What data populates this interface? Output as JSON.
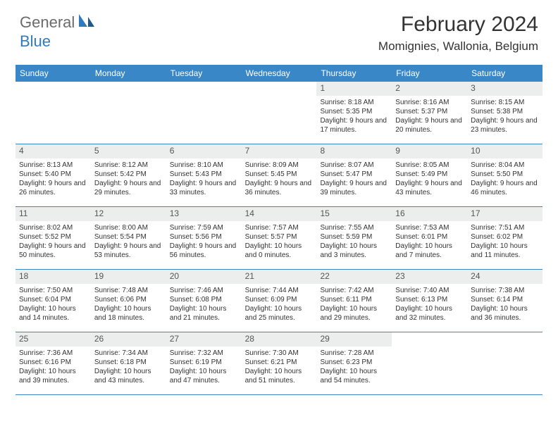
{
  "logo": {
    "text1": "General",
    "text2": "Blue"
  },
  "title": "February 2024",
  "location": "Momignies, Wallonia, Belgium",
  "colors": {
    "header_bg": "#3a87c7",
    "daynum_bg": "#eceded",
    "row_border": "#3a87c7",
    "logo_gray": "#6b6b6b",
    "logo_blue": "#2f7bbf"
  },
  "day_headers": [
    "Sunday",
    "Monday",
    "Tuesday",
    "Wednesday",
    "Thursday",
    "Friday",
    "Saturday"
  ],
  "weeks": [
    [
      null,
      null,
      null,
      null,
      {
        "n": "1",
        "sr": "8:18 AM",
        "ss": "5:35 PM",
        "dl": "9 hours and 17 minutes."
      },
      {
        "n": "2",
        "sr": "8:16 AM",
        "ss": "5:37 PM",
        "dl": "9 hours and 20 minutes."
      },
      {
        "n": "3",
        "sr": "8:15 AM",
        "ss": "5:38 PM",
        "dl": "9 hours and 23 minutes."
      }
    ],
    [
      {
        "n": "4",
        "sr": "8:13 AM",
        "ss": "5:40 PM",
        "dl": "9 hours and 26 minutes."
      },
      {
        "n": "5",
        "sr": "8:12 AM",
        "ss": "5:42 PM",
        "dl": "9 hours and 29 minutes."
      },
      {
        "n": "6",
        "sr": "8:10 AM",
        "ss": "5:43 PM",
        "dl": "9 hours and 33 minutes."
      },
      {
        "n": "7",
        "sr": "8:09 AM",
        "ss": "5:45 PM",
        "dl": "9 hours and 36 minutes."
      },
      {
        "n": "8",
        "sr": "8:07 AM",
        "ss": "5:47 PM",
        "dl": "9 hours and 39 minutes."
      },
      {
        "n": "9",
        "sr": "8:05 AM",
        "ss": "5:49 PM",
        "dl": "9 hours and 43 minutes."
      },
      {
        "n": "10",
        "sr": "8:04 AM",
        "ss": "5:50 PM",
        "dl": "9 hours and 46 minutes."
      }
    ],
    [
      {
        "n": "11",
        "sr": "8:02 AM",
        "ss": "5:52 PM",
        "dl": "9 hours and 50 minutes."
      },
      {
        "n": "12",
        "sr": "8:00 AM",
        "ss": "5:54 PM",
        "dl": "9 hours and 53 minutes."
      },
      {
        "n": "13",
        "sr": "7:59 AM",
        "ss": "5:56 PM",
        "dl": "9 hours and 56 minutes."
      },
      {
        "n": "14",
        "sr": "7:57 AM",
        "ss": "5:57 PM",
        "dl": "10 hours and 0 minutes."
      },
      {
        "n": "15",
        "sr": "7:55 AM",
        "ss": "5:59 PM",
        "dl": "10 hours and 3 minutes."
      },
      {
        "n": "16",
        "sr": "7:53 AM",
        "ss": "6:01 PM",
        "dl": "10 hours and 7 minutes."
      },
      {
        "n": "17",
        "sr": "7:51 AM",
        "ss": "6:02 PM",
        "dl": "10 hours and 11 minutes."
      }
    ],
    [
      {
        "n": "18",
        "sr": "7:50 AM",
        "ss": "6:04 PM",
        "dl": "10 hours and 14 minutes."
      },
      {
        "n": "19",
        "sr": "7:48 AM",
        "ss": "6:06 PM",
        "dl": "10 hours and 18 minutes."
      },
      {
        "n": "20",
        "sr": "7:46 AM",
        "ss": "6:08 PM",
        "dl": "10 hours and 21 minutes."
      },
      {
        "n": "21",
        "sr": "7:44 AM",
        "ss": "6:09 PM",
        "dl": "10 hours and 25 minutes."
      },
      {
        "n": "22",
        "sr": "7:42 AM",
        "ss": "6:11 PM",
        "dl": "10 hours and 29 minutes."
      },
      {
        "n": "23",
        "sr": "7:40 AM",
        "ss": "6:13 PM",
        "dl": "10 hours and 32 minutes."
      },
      {
        "n": "24",
        "sr": "7:38 AM",
        "ss": "6:14 PM",
        "dl": "10 hours and 36 minutes."
      }
    ],
    [
      {
        "n": "25",
        "sr": "7:36 AM",
        "ss": "6:16 PM",
        "dl": "10 hours and 39 minutes."
      },
      {
        "n": "26",
        "sr": "7:34 AM",
        "ss": "6:18 PM",
        "dl": "10 hours and 43 minutes."
      },
      {
        "n": "27",
        "sr": "7:32 AM",
        "ss": "6:19 PM",
        "dl": "10 hours and 47 minutes."
      },
      {
        "n": "28",
        "sr": "7:30 AM",
        "ss": "6:21 PM",
        "dl": "10 hours and 51 minutes."
      },
      {
        "n": "29",
        "sr": "7:28 AM",
        "ss": "6:23 PM",
        "dl": "10 hours and 54 minutes."
      },
      null,
      null
    ]
  ],
  "labels": {
    "sunrise": "Sunrise: ",
    "sunset": "Sunset: ",
    "daylight": "Daylight: "
  }
}
